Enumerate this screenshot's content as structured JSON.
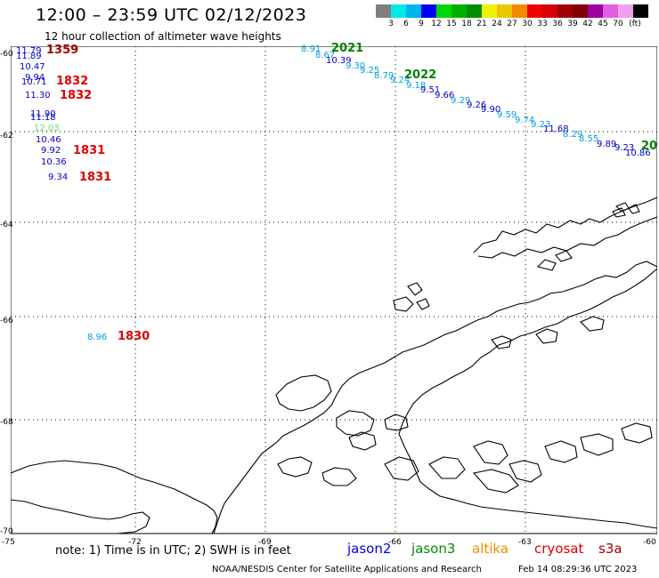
{
  "header": {
    "title": "12:00 – 23:59 UTC 02/12/2023",
    "subtitle": "12 hour collection of altimeter wave heights"
  },
  "color_scale": {
    "colors": [
      "#7f7f7f",
      "#00e8e8",
      "#00b4f0",
      "#0000f0",
      "#00d800",
      "#00b000",
      "#008c00",
      "#f0f000",
      "#e8c800",
      "#f08c00",
      "#f00000",
      "#d40000",
      "#a00000",
      "#800000",
      "#a000a0",
      "#e060e0",
      "#f0a0f0",
      "#000000"
    ],
    "labels": [
      "3",
      "6",
      "9",
      "12",
      "15",
      "18",
      "21",
      "24",
      "27",
      "30",
      "33",
      "36",
      "39",
      "42",
      "45",
      "70"
    ],
    "unit": "(ft)"
  },
  "lat_ticks": [
    "-60",
    "-62",
    "-64",
    "-66",
    "-68",
    "-70"
  ],
  "lon_ticks": [
    "-75",
    "-72",
    "-69",
    "-66",
    "-63",
    "-60"
  ],
  "observations": [
    {
      "text": "11.79",
      "color": "#0000c8"
    },
    {
      "text": "11.89",
      "color": "#0000c8"
    },
    {
      "text": "10.47",
      "color": "#0000c8"
    },
    {
      "text": "9.94",
      "color": "#0000c8"
    },
    {
      "text": "10.71",
      "color": "#0000c8"
    },
    {
      "text": "11.30",
      "color": "#0000c8"
    },
    {
      "text": "11.90",
      "color": "#0000c8"
    },
    {
      "text": "11.18",
      "color": "#0000c8"
    },
    {
      "text": "12.03",
      "color": "#60e060"
    },
    {
      "text": "10.46",
      "color": "#0000c8"
    },
    {
      "text": "9.92",
      "color": "#0000c8"
    },
    {
      "text": "10.36",
      "color": "#0000c8"
    },
    {
      "text": "9.34",
      "color": "#0000c8"
    },
    {
      "text": "8.96",
      "color": "#00a0e0"
    },
    {
      "text": "8.91",
      "color": "#00a0e0"
    },
    {
      "text": "8.67",
      "color": "#00a0e0"
    },
    {
      "text": "10.39",
      "color": "#0000c8"
    },
    {
      "text": "9.30",
      "color": "#00a0e0"
    },
    {
      "text": "9.25",
      "color": "#00a0e0"
    },
    {
      "text": "8.79",
      "color": "#00a0e0"
    },
    {
      "text": "9.24",
      "color": "#00a0e0"
    },
    {
      "text": "9.18",
      "color": "#00a0e0"
    },
    {
      "text": "9.51",
      "color": "#0000c8"
    },
    {
      "text": "9.66",
      "color": "#0000c8"
    },
    {
      "text": "9.29",
      "color": "#00a0e0"
    },
    {
      "text": "9.26",
      "color": "#0000c8"
    },
    {
      "text": "9.90",
      "color": "#0000c8"
    },
    {
      "text": "9.59",
      "color": "#00a0e0"
    },
    {
      "text": "9.74",
      "color": "#00a0e0"
    },
    {
      "text": "9.23",
      "color": "#00a0e0"
    },
    {
      "text": "11.68",
      "color": "#0000c8"
    },
    {
      "text": "8.29",
      "color": "#00a0e0"
    },
    {
      "text": "8.55",
      "color": "#00a0e0"
    },
    {
      "text": "9.89",
      "color": "#0000c8"
    },
    {
      "text": "9.23",
      "color": "#0000c8"
    },
    {
      "text": "10.86",
      "color": "#0000c8"
    }
  ],
  "time_labels": [
    {
      "text": "1359",
      "color": "#a00000"
    },
    {
      "text": "1832",
      "color": "#e00000"
    },
    {
      "text": "1832",
      "color": "#e00000"
    },
    {
      "text": "1831",
      "color": "#e00000"
    },
    {
      "text": "1831",
      "color": "#e00000"
    },
    {
      "text": "1830",
      "color": "#e00000"
    },
    {
      "text": "2021",
      "color": "#008000"
    },
    {
      "text": "2022",
      "color": "#008000"
    },
    {
      "text": "20",
      "color": "#008000"
    }
  ],
  "footer": {
    "note": "note: 1) Time is in UTC; 2) SWH is in feet",
    "satellites": [
      {
        "name": "jason2",
        "color": "#0000f0"
      },
      {
        "name": "jason3",
        "color": "#008c00"
      },
      {
        "name": "altika",
        "color": "#f08c00"
      },
      {
        "name": "cryosat",
        "color": "#e00000"
      },
      {
        "name": "s3a",
        "color": "#a00000"
      }
    ],
    "credit": "NOAA/NESDIS Center for Satellite Applications and Research",
    "timestamp": "Feb 14 08:29:36 UTC 2023"
  }
}
